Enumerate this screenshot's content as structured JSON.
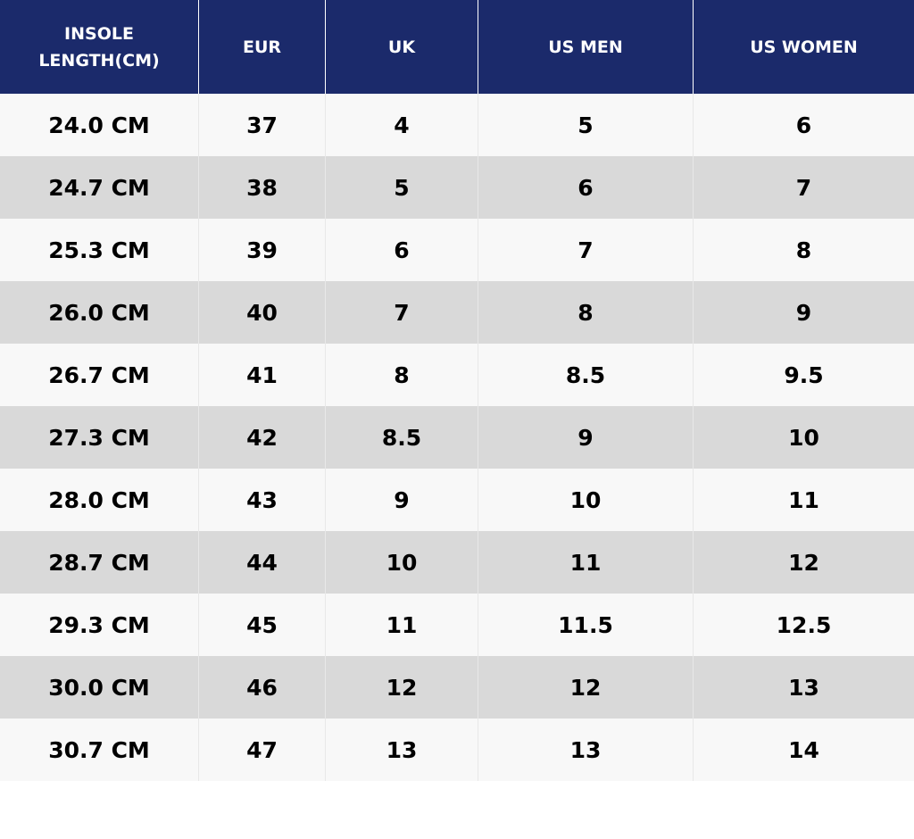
{
  "table": {
    "header": [
      "INSOLE LENGTH(CM)",
      "EUR",
      "UK",
      "US MEN",
      "US WOMEN"
    ],
    "rows": [
      [
        "24.0 CM",
        "37",
        "4",
        "5",
        "6"
      ],
      [
        "24.7 CM",
        "38",
        "5",
        "6",
        "7"
      ],
      [
        "25.3 CM",
        "39",
        "6",
        "7",
        "8"
      ],
      [
        "26.0 CM",
        "40",
        "7",
        "8",
        "9"
      ],
      [
        "26.7 CM",
        "41",
        "8",
        "8.5",
        "9.5"
      ],
      [
        "27.3 CM",
        "42",
        "8.5",
        "9",
        "10"
      ],
      [
        "28.0 CM",
        "43",
        "9",
        "10",
        "11"
      ],
      [
        "28.7 CM",
        "44",
        "10",
        "11",
        "12"
      ],
      [
        "29.3 CM",
        "45",
        "11",
        "11.5",
        "12.5"
      ],
      [
        "30.0 CM",
        "46",
        "12",
        "12",
        "13"
      ],
      [
        "30.7 CM",
        "47",
        "13",
        "13",
        "14"
      ]
    ]
  }
}
